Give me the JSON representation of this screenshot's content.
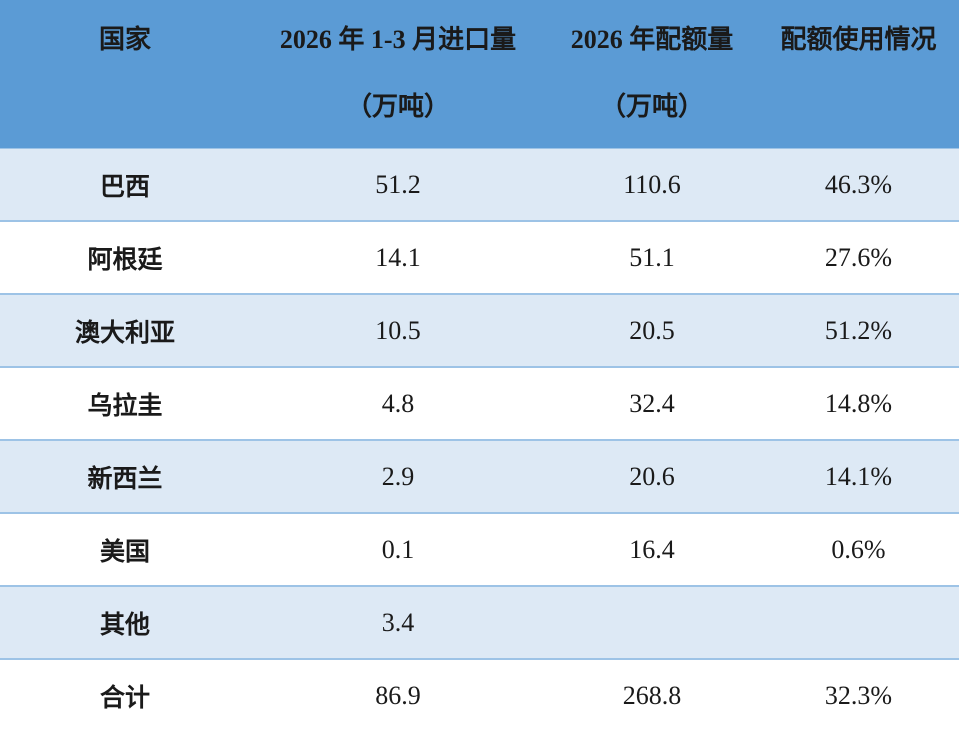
{
  "table": {
    "headers": [
      {
        "line1": "国家",
        "line2": ""
      },
      {
        "line1": "2026 年 1-3 月进口量",
        "line2": "（万吨）"
      },
      {
        "line1": "2026 年配额量",
        "line2": "（万吨）"
      },
      {
        "line1": "配额使用情况",
        "line2": ""
      }
    ],
    "rows": [
      {
        "country": "巴西",
        "imports": "51.2",
        "quota": "110.6",
        "usage": "46.3%"
      },
      {
        "country": "阿根廷",
        "imports": "14.1",
        "quota": "51.1",
        "usage": "27.6%"
      },
      {
        "country": "澳大利亚",
        "imports": "10.5",
        "quota": "20.5",
        "usage": "51.2%"
      },
      {
        "country": "乌拉圭",
        "imports": "4.8",
        "quota": "32.4",
        "usage": "14.8%"
      },
      {
        "country": "新西兰",
        "imports": "2.9",
        "quota": "20.6",
        "usage": "14.1%"
      },
      {
        "country": "美国",
        "imports": "0.1",
        "quota": "16.4",
        "usage": "0.6%"
      },
      {
        "country": "其他",
        "imports": "3.4",
        "quota": "",
        "usage": ""
      },
      {
        "country": "合计",
        "imports": "86.9",
        "quota": "268.8",
        "usage": "32.3%"
      }
    ]
  },
  "colors": {
    "header_bg": "#5b9bd5",
    "band_bg": "#dde9f5",
    "row_border": "#9dc3e6"
  }
}
